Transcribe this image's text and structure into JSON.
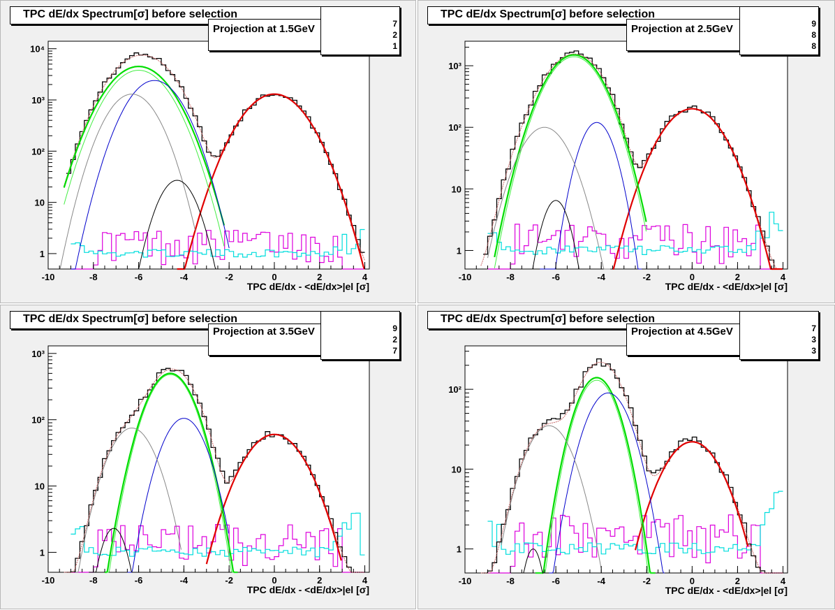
{
  "page": {
    "title": "TPC dE/dx Spectrum"
  },
  "panels": [
    {
      "title": "TPC dE/dx Spectrum[σ] before selection",
      "projection": "Projection at 1.5GeV",
      "stats": [
        "7",
        "2",
        "1"
      ],
      "xlabel": "TPC dE/dx - <dE/dx>|el [σ]",
      "xticks": [
        "-10",
        "-8",
        "-6",
        "-4",
        "-2",
        "0",
        "2",
        "4"
      ],
      "yticks": [
        {
          "v": 1,
          "t": "1"
        },
        {
          "v": 10,
          "t": "10"
        },
        {
          "v": 100,
          "t": "10²"
        },
        {
          "v": 1000,
          "t": "10³"
        },
        {
          "v": 10000,
          "t": "10⁴"
        }
      ]
    },
    {
      "title": "TPC dE/dx Spectrum[σ] before selection",
      "projection": "Projection at 2.5GeV",
      "stats": [
        "9",
        "8",
        "8"
      ],
      "xlabel": "TPC dE/dx - <dE/dx>|el [σ]",
      "xticks": [
        "-10",
        "-8",
        "-6",
        "-4",
        "-2",
        "0",
        "2",
        "4"
      ],
      "yticks": [
        {
          "v": 1,
          "t": "1"
        },
        {
          "v": 10,
          "t": "10"
        },
        {
          "v": 100,
          "t": "10²"
        },
        {
          "v": 1000,
          "t": "10³"
        }
      ]
    },
    {
      "title": "TPC dE/dx Spectrum[σ] before selection",
      "projection": "Projection at 3.5GeV",
      "stats": [
        "9",
        "2",
        "7"
      ],
      "xlabel": "TPC dE/dx - <dE/dx>|el [σ]",
      "xticks": [
        "-10",
        "-8",
        "-6",
        "-4",
        "-2",
        "0",
        "2",
        "4"
      ],
      "yticks": [
        {
          "v": 1,
          "t": "1"
        },
        {
          "v": 10,
          "t": "10"
        },
        {
          "v": 100,
          "t": "10²"
        },
        {
          "v": 1000,
          "t": "10³"
        }
      ]
    },
    {
      "title": "TPC dE/dx Spectrum[σ] before selection",
      "projection": "Projection at 4.5GeV",
      "stats": [
        "7",
        "3",
        "3"
      ],
      "xlabel": "TPC dE/dx - <dE/dx>|el [σ]",
      "xticks": [
        "-10",
        "-8",
        "-6",
        "-4",
        "-2",
        "0",
        "2",
        "4"
      ],
      "yticks": [
        {
          "v": 1,
          "t": "1"
        },
        {
          "v": 10,
          "t": "10"
        },
        {
          "v": 100,
          "t": "10²"
        }
      ]
    }
  ],
  "colors": {
    "data": "#000000",
    "total_fit": "#c86464",
    "electron": "#e00000",
    "pion": "#00dd00",
    "pion_alt": "#44ee44",
    "kaon": "#0000cc",
    "proton": "#888888",
    "deuteron": "#000000",
    "residual_a": "#dd00dd",
    "residual_b": "#00dddd",
    "pad_bg": "#f0f0f0",
    "frame_bg": "#ffffff"
  },
  "chart_data": [
    {
      "type": "line",
      "title": "TPC dE/dx Spectrum[σ] before selection",
      "annotation": "Projection at 1.5GeV",
      "xlabel": "TPC dE/dx - <dE/dx>|el [σ]",
      "ylabel": "",
      "xlim": [
        -10,
        4.2
      ],
      "ylim": [
        0.5,
        14000
      ],
      "yscale": "log",
      "components": [
        {
          "color": "electron",
          "A": 1300,
          "mu": 0,
          "sigma": 1.0,
          "range": [
            -4.3,
            4
          ]
        },
        {
          "color": "pion",
          "A": 4500,
          "mu": -6.0,
          "sigma": 1.0,
          "range": [
            -9.3,
            -2.2
          ]
        },
        {
          "color": "pion_alt",
          "A": 3800,
          "mu": -6.0,
          "sigma": 0.95,
          "range": [
            -9.3,
            -2.2
          ]
        },
        {
          "color": "kaon",
          "A": 2400,
          "mu": -5.3,
          "sigma": 0.85,
          "range": [
            -9,
            -2
          ]
        },
        {
          "color": "proton",
          "A": 1300,
          "mu": -6.3,
          "sigma": 0.8,
          "range": [
            -9.5,
            -3.5
          ]
        },
        {
          "color": "deuteron",
          "A": 27,
          "mu": -4.3,
          "sigma": 0.6,
          "range": [
            -6.3,
            -2.5
          ]
        }
      ],
      "noise_level": [
        1.1,
        1.8
      ]
    },
    {
      "type": "line",
      "title": "TPC dE/dx Spectrum[σ] before selection",
      "annotation": "Projection at 2.5GeV",
      "xlabel": "TPC dE/dx - <dE/dx>|el [σ]",
      "ylabel": "",
      "xlim": [
        -10,
        4.2
      ],
      "ylim": [
        0.5,
        2500
      ],
      "yscale": "log",
      "components": [
        {
          "color": "electron",
          "A": 200,
          "mu": 0,
          "sigma": 1.0,
          "range": [
            -3.5,
            4
          ]
        },
        {
          "color": "pion",
          "A": 1500,
          "mu": -5.2,
          "sigma": 0.9,
          "range": [
            -8.7,
            -2
          ]
        },
        {
          "color": "pion_alt",
          "A": 1400,
          "mu": -5.2,
          "sigma": 0.88,
          "range": [
            -8.7,
            -2
          ]
        },
        {
          "color": "kaon",
          "A": 120,
          "mu": -4.2,
          "sigma": 0.55,
          "range": [
            -6.7,
            -2.2
          ]
        },
        {
          "color": "proton",
          "A": 100,
          "mu": -6.5,
          "sigma": 0.8,
          "range": [
            -9,
            -3.6
          ]
        },
        {
          "color": "deuteron",
          "A": 6.5,
          "mu": -6.0,
          "sigma": 0.45,
          "range": [
            -7.3,
            -4.6
          ]
        }
      ],
      "noise_level": [
        1.0,
        1.6
      ]
    },
    {
      "type": "line",
      "title": "TPC dE/dx Spectrum[σ] before selection",
      "annotation": "Projection at 3.5GeV",
      "xlabel": "TPC dE/dx - <dE/dx>|el [σ]",
      "ylabel": "",
      "xlim": [
        -10,
        4.2
      ],
      "ylim": [
        0.5,
        1300
      ],
      "yscale": "log",
      "components": [
        {
          "color": "electron",
          "A": 60,
          "mu": 0,
          "sigma": 1.0,
          "range": [
            -3,
            3
          ]
        },
        {
          "color": "pion",
          "A": 500,
          "mu": -4.6,
          "sigma": 0.75,
          "range": [
            -7.5,
            -1.6
          ]
        },
        {
          "color": "pion_alt",
          "A": 480,
          "mu": -4.6,
          "sigma": 0.73,
          "range": [
            -7.5,
            -1.6
          ]
        },
        {
          "color": "kaon",
          "A": 105,
          "mu": -4.0,
          "sigma": 0.7,
          "range": [
            -6.5,
            -2
          ]
        },
        {
          "color": "proton",
          "A": 75,
          "mu": -6.3,
          "sigma": 0.75,
          "range": [
            -8.8,
            -4.1
          ]
        },
        {
          "color": "deuteron",
          "A": 2.3,
          "mu": -7.1,
          "sigma": 0.45,
          "range": [
            -8.2,
            -6.1
          ]
        }
      ],
      "noise_level": [
        1.0,
        1.6
      ]
    },
    {
      "type": "line",
      "title": "TPC dE/dx Spectrum[σ] before selection",
      "annotation": "Projection at 4.5GeV",
      "xlabel": "TPC dE/dx - <dE/dx>|el [σ]",
      "ylabel": "",
      "xlim": [
        -10,
        4.2
      ],
      "ylim": [
        0.5,
        350
      ],
      "yscale": "log",
      "components": [
        {
          "color": "electron",
          "A": 22,
          "mu": 0,
          "sigma": 1.0,
          "range": [
            -2.5,
            2.5
          ]
        },
        {
          "color": "pion",
          "A": 140,
          "mu": -4.2,
          "sigma": 0.7,
          "range": [
            -6.9,
            -1.6
          ]
        },
        {
          "color": "pion_alt",
          "A": 130,
          "mu": -4.2,
          "sigma": 0.68,
          "range": [
            -6.9,
            -1.6
          ]
        },
        {
          "color": "kaon",
          "A": 90,
          "mu": -3.7,
          "sigma": 0.75,
          "range": [
            -6.3,
            -1.2
          ]
        },
        {
          "color": "proton",
          "A": 35,
          "mu": -6.3,
          "sigma": 0.8,
          "range": [
            -8.4,
            -4
          ]
        },
        {
          "color": "deuteron",
          "A": 1.0,
          "mu": -7.0,
          "sigma": 0.35,
          "range": [
            -7.7,
            -6.3
          ]
        }
      ],
      "noise_level": [
        1.0,
        1.6
      ]
    }
  ]
}
